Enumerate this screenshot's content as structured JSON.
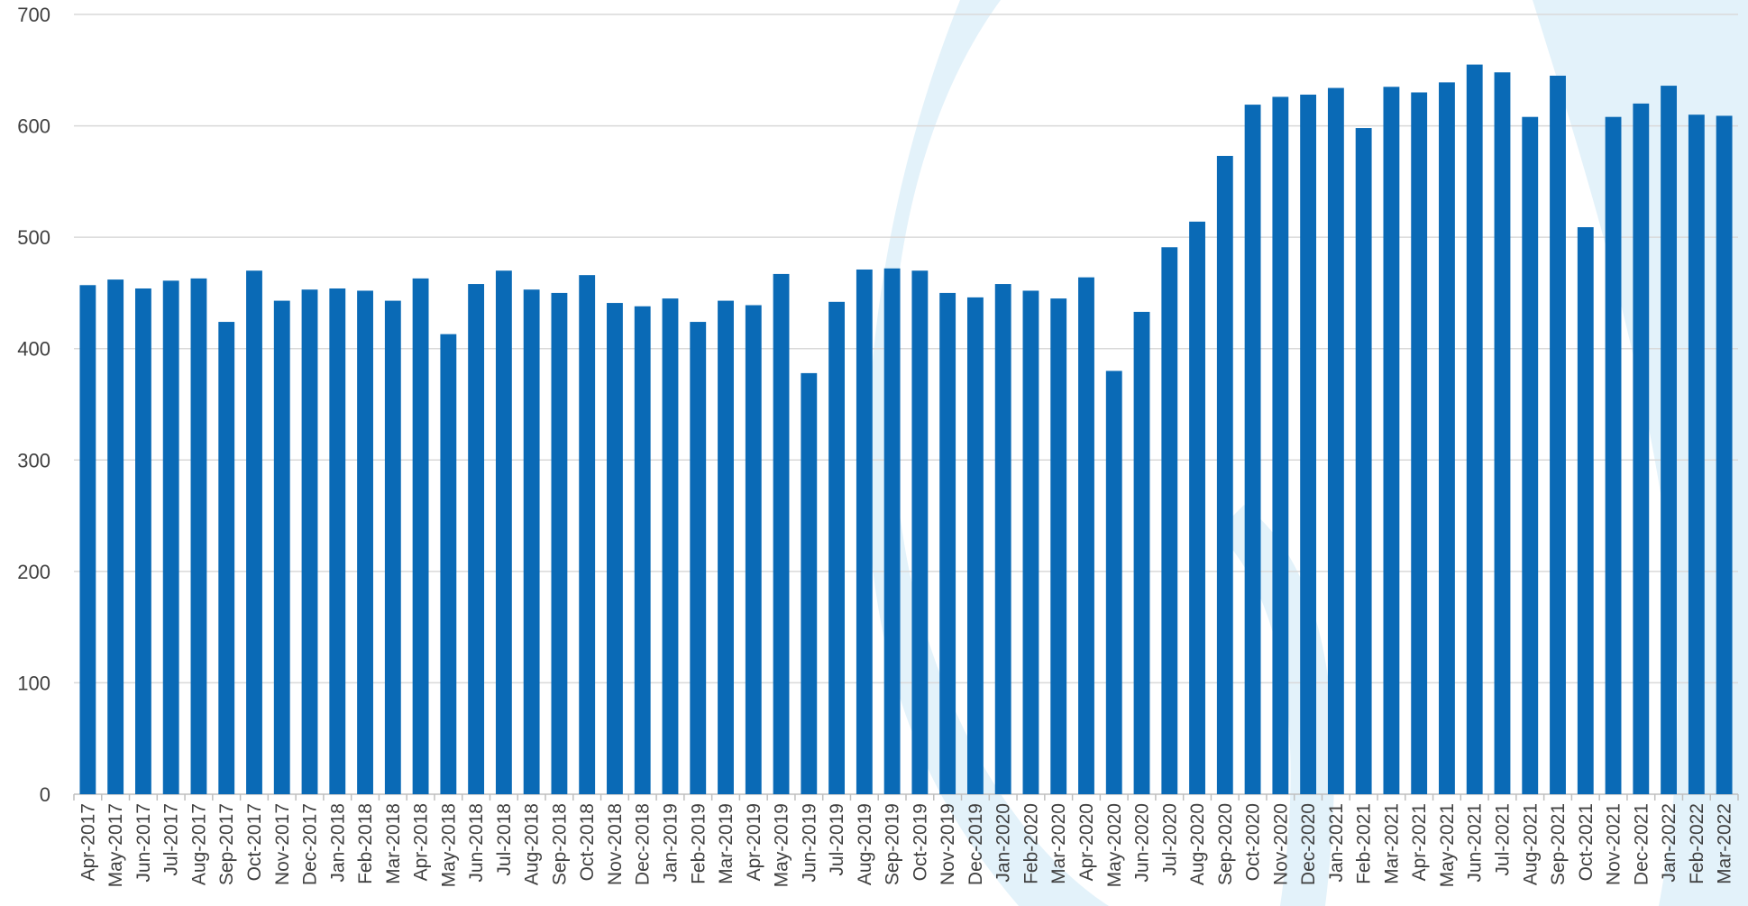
{
  "chart_data": {
    "type": "bar",
    "title": "",
    "xlabel": "",
    "ylabel": "",
    "ylim": [
      0,
      700
    ],
    "yticks": [
      0,
      100,
      200,
      300,
      400,
      500,
      600,
      700
    ],
    "grid": true,
    "legend": "none",
    "bar_color": "#0a6ab6",
    "gridline_color": "#d9d9d9",
    "watermark_color": "#e3f2fa",
    "categories": [
      "Apr-2017",
      "May-2017",
      "Jun-2017",
      "Jul-2017",
      "Aug-2017",
      "Sep-2017",
      "Oct-2017",
      "Nov-2017",
      "Dec-2017",
      "Jan-2018",
      "Feb-2018",
      "Mar-2018",
      "Apr-2018",
      "May-2018",
      "Jun-2018",
      "Jul-2018",
      "Aug-2018",
      "Sep-2018",
      "Oct-2018",
      "Nov-2018",
      "Dec-2018",
      "Jan-2019",
      "Feb-2019",
      "Mar-2019",
      "Apr-2019",
      "May-2019",
      "Jun-2019",
      "Jul-2019",
      "Aug-2019",
      "Sep-2019",
      "Oct-2019",
      "Nov-2019",
      "Dec-2019",
      "Jan-2020",
      "Feb-2020",
      "Mar-2020",
      "Apr-2020",
      "May-2020",
      "Jun-2020",
      "Jul-2020",
      "Aug-2020",
      "Sep-2020",
      "Oct-2020",
      "Nov-2020",
      "Dec-2020",
      "Jan-2021",
      "Feb-2021",
      "Mar-2021",
      "Apr-2021",
      "May-2021",
      "Jun-2021",
      "Jul-2021",
      "Aug-2021",
      "Sep-2021",
      "Oct-2021",
      "Nov-2021",
      "Dec-2021",
      "Jan-2022",
      "Feb-2022",
      "Mar-2022"
    ],
    "values": [
      457,
      462,
      454,
      461,
      463,
      424,
      470,
      443,
      453,
      454,
      452,
      443,
      463,
      413,
      458,
      470,
      453,
      450,
      466,
      441,
      438,
      445,
      424,
      443,
      439,
      467,
      378,
      442,
      471,
      472,
      470,
      450,
      446,
      458,
      452,
      445,
      464,
      380,
      433,
      491,
      514,
      573,
      619,
      626,
      628,
      634,
      598,
      635,
      630,
      639,
      655,
      648,
      608,
      645,
      509,
      608,
      620,
      636,
      610,
      609
    ]
  }
}
